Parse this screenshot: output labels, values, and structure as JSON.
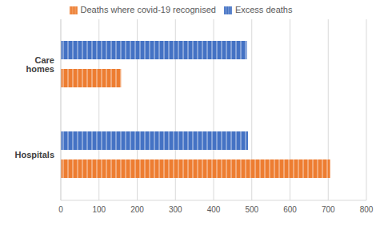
{
  "chart_data": {
    "type": "bar",
    "orientation": "horizontal",
    "categories": [
      "Care homes",
      "Hospitals"
    ],
    "series": [
      {
        "name": "Excess deaths",
        "color": "#4472c4",
        "values": [
          487,
          490
        ]
      },
      {
        "name": "Deaths where covid-19 recognised",
        "color": "#ed7d31",
        "values": [
          158,
          705
        ]
      }
    ],
    "xlim": [
      0,
      800
    ],
    "xticks": [
      0,
      100,
      200,
      300,
      400,
      500,
      600,
      700,
      800
    ],
    "grid": true,
    "legend": "top"
  }
}
